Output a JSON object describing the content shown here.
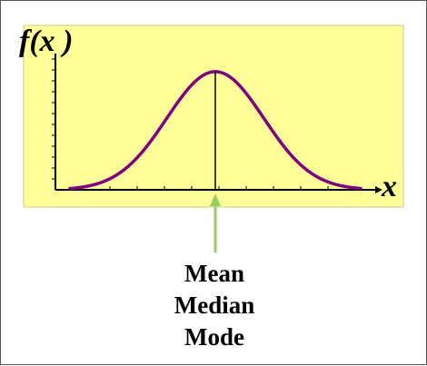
{
  "chart_data": {
    "type": "line",
    "title": "",
    "xlabel": "x",
    "ylabel": "f(x )",
    "distribution": "normal (bell curve)",
    "series": [
      {
        "values_note": "symmetric bell-shaped density, peak at center",
        "color": "#800080"
      }
    ],
    "x": [
      -3,
      -2.5,
      -2,
      -1.5,
      -1,
      -0.5,
      0,
      0.5,
      1,
      1.5,
      2,
      2.5,
      3
    ],
    "y": [
      0.004,
      0.018,
      0.054,
      0.13,
      0.242,
      0.352,
      0.399,
      0.352,
      0.242,
      0.13,
      0.054,
      0.018,
      0.004
    ],
    "xlim": [
      -3.3,
      3.3
    ],
    "ylim": [
      0,
      0.46
    ],
    "center_line": {
      "x": 0
    },
    "annotation": {
      "lines": [
        "Mean",
        "Median",
        "Mode"
      ],
      "arrow_color": "#99cc66"
    },
    "plot_background": "#ffff99",
    "grid": false
  }
}
